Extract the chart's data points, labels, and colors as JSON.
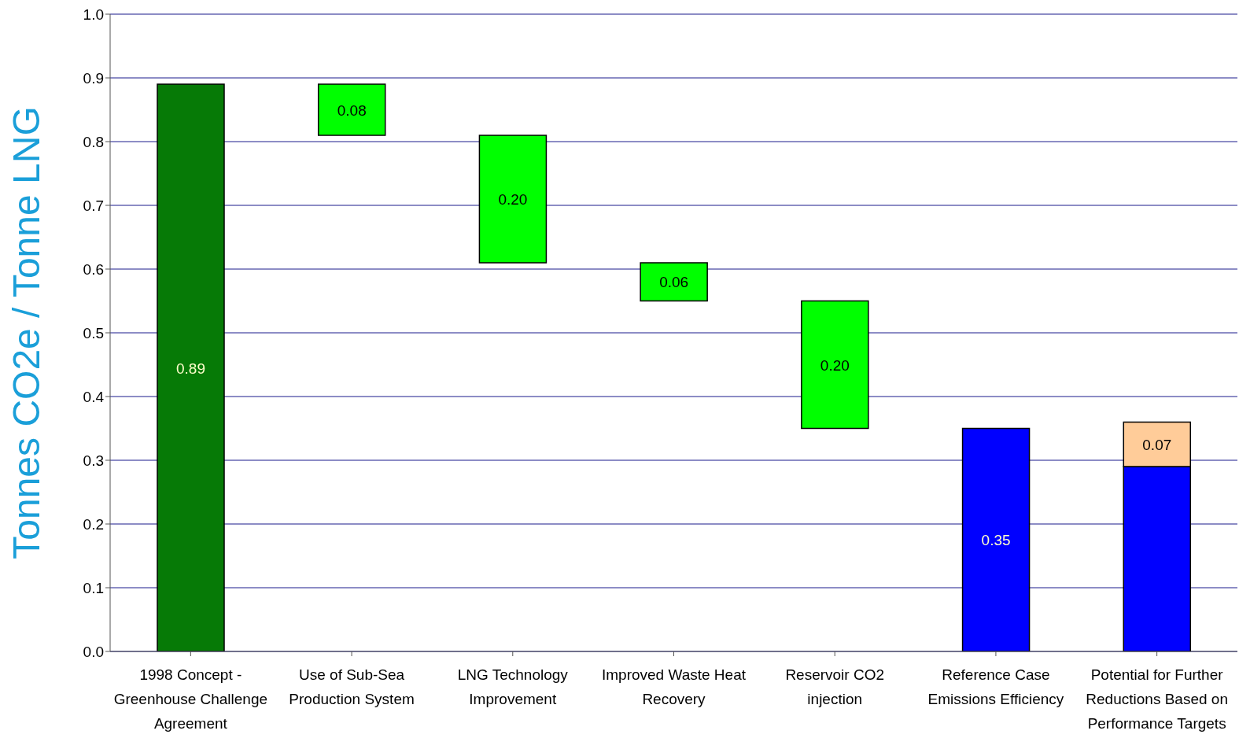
{
  "chart_data": {
    "type": "bar",
    "ylabel": "Tonnes CO2e / Tonne LNG",
    "categories": [
      "1998 Concept - Greenhouse Challenge Agreement",
      "Use of Sub-Sea Production System",
      "LNG Technology Improvement",
      "Improved Waste Heat Recovery",
      "Reservoir CO2 injection",
      "Reference Case Emissions Efficiency",
      "Potential for Further Reductions Based on Performance Targets"
    ],
    "series": [
      {
        "base": [
          0,
          0.81,
          0.61,
          0.55,
          0.35,
          0,
          0
        ],
        "colors": [
          "#067a06",
          "#00ff00",
          "#00ff00",
          "#00ff00",
          "#00ff00",
          "#0000ff",
          "#0000ff"
        ],
        "values": [
          0.89,
          0.08,
          0.2,
          0.06,
          0.2,
          0.35,
          0.29
        ],
        "value_labels": [
          "0.89",
          "0.08",
          "0.20",
          "0.06",
          "0.20",
          "0.35",
          null
        ]
      },
      {
        "base": [
          null,
          null,
          null,
          null,
          null,
          null,
          0.29
        ],
        "color": "#ffcc99",
        "values": [
          null,
          null,
          null,
          null,
          null,
          null,
          0.07
        ],
        "value_labels": [
          null,
          null,
          null,
          null,
          null,
          null,
          "0.07"
        ]
      }
    ],
    "ylim": [
      0,
      1
    ],
    "yticks": [
      {
        "value": 0,
        "label": "0.0"
      },
      {
        "value": 0.1,
        "label": "0.1"
      },
      {
        "value": 0.2,
        "label": "0.2"
      },
      {
        "value": 0.3,
        "label": "0.3"
      },
      {
        "value": 0.4,
        "label": "0.4"
      },
      {
        "value": 0.5,
        "label": "0.5"
      },
      {
        "value": 0.6,
        "label": "0.6"
      },
      {
        "value": 0.7,
        "label": "0.7"
      },
      {
        "value": 0.8,
        "label": "0.8"
      },
      {
        "value": 0.9,
        "label": "0.9"
      },
      {
        "value": 1,
        "label": "1.0"
      }
    ],
    "grid": "y"
  }
}
